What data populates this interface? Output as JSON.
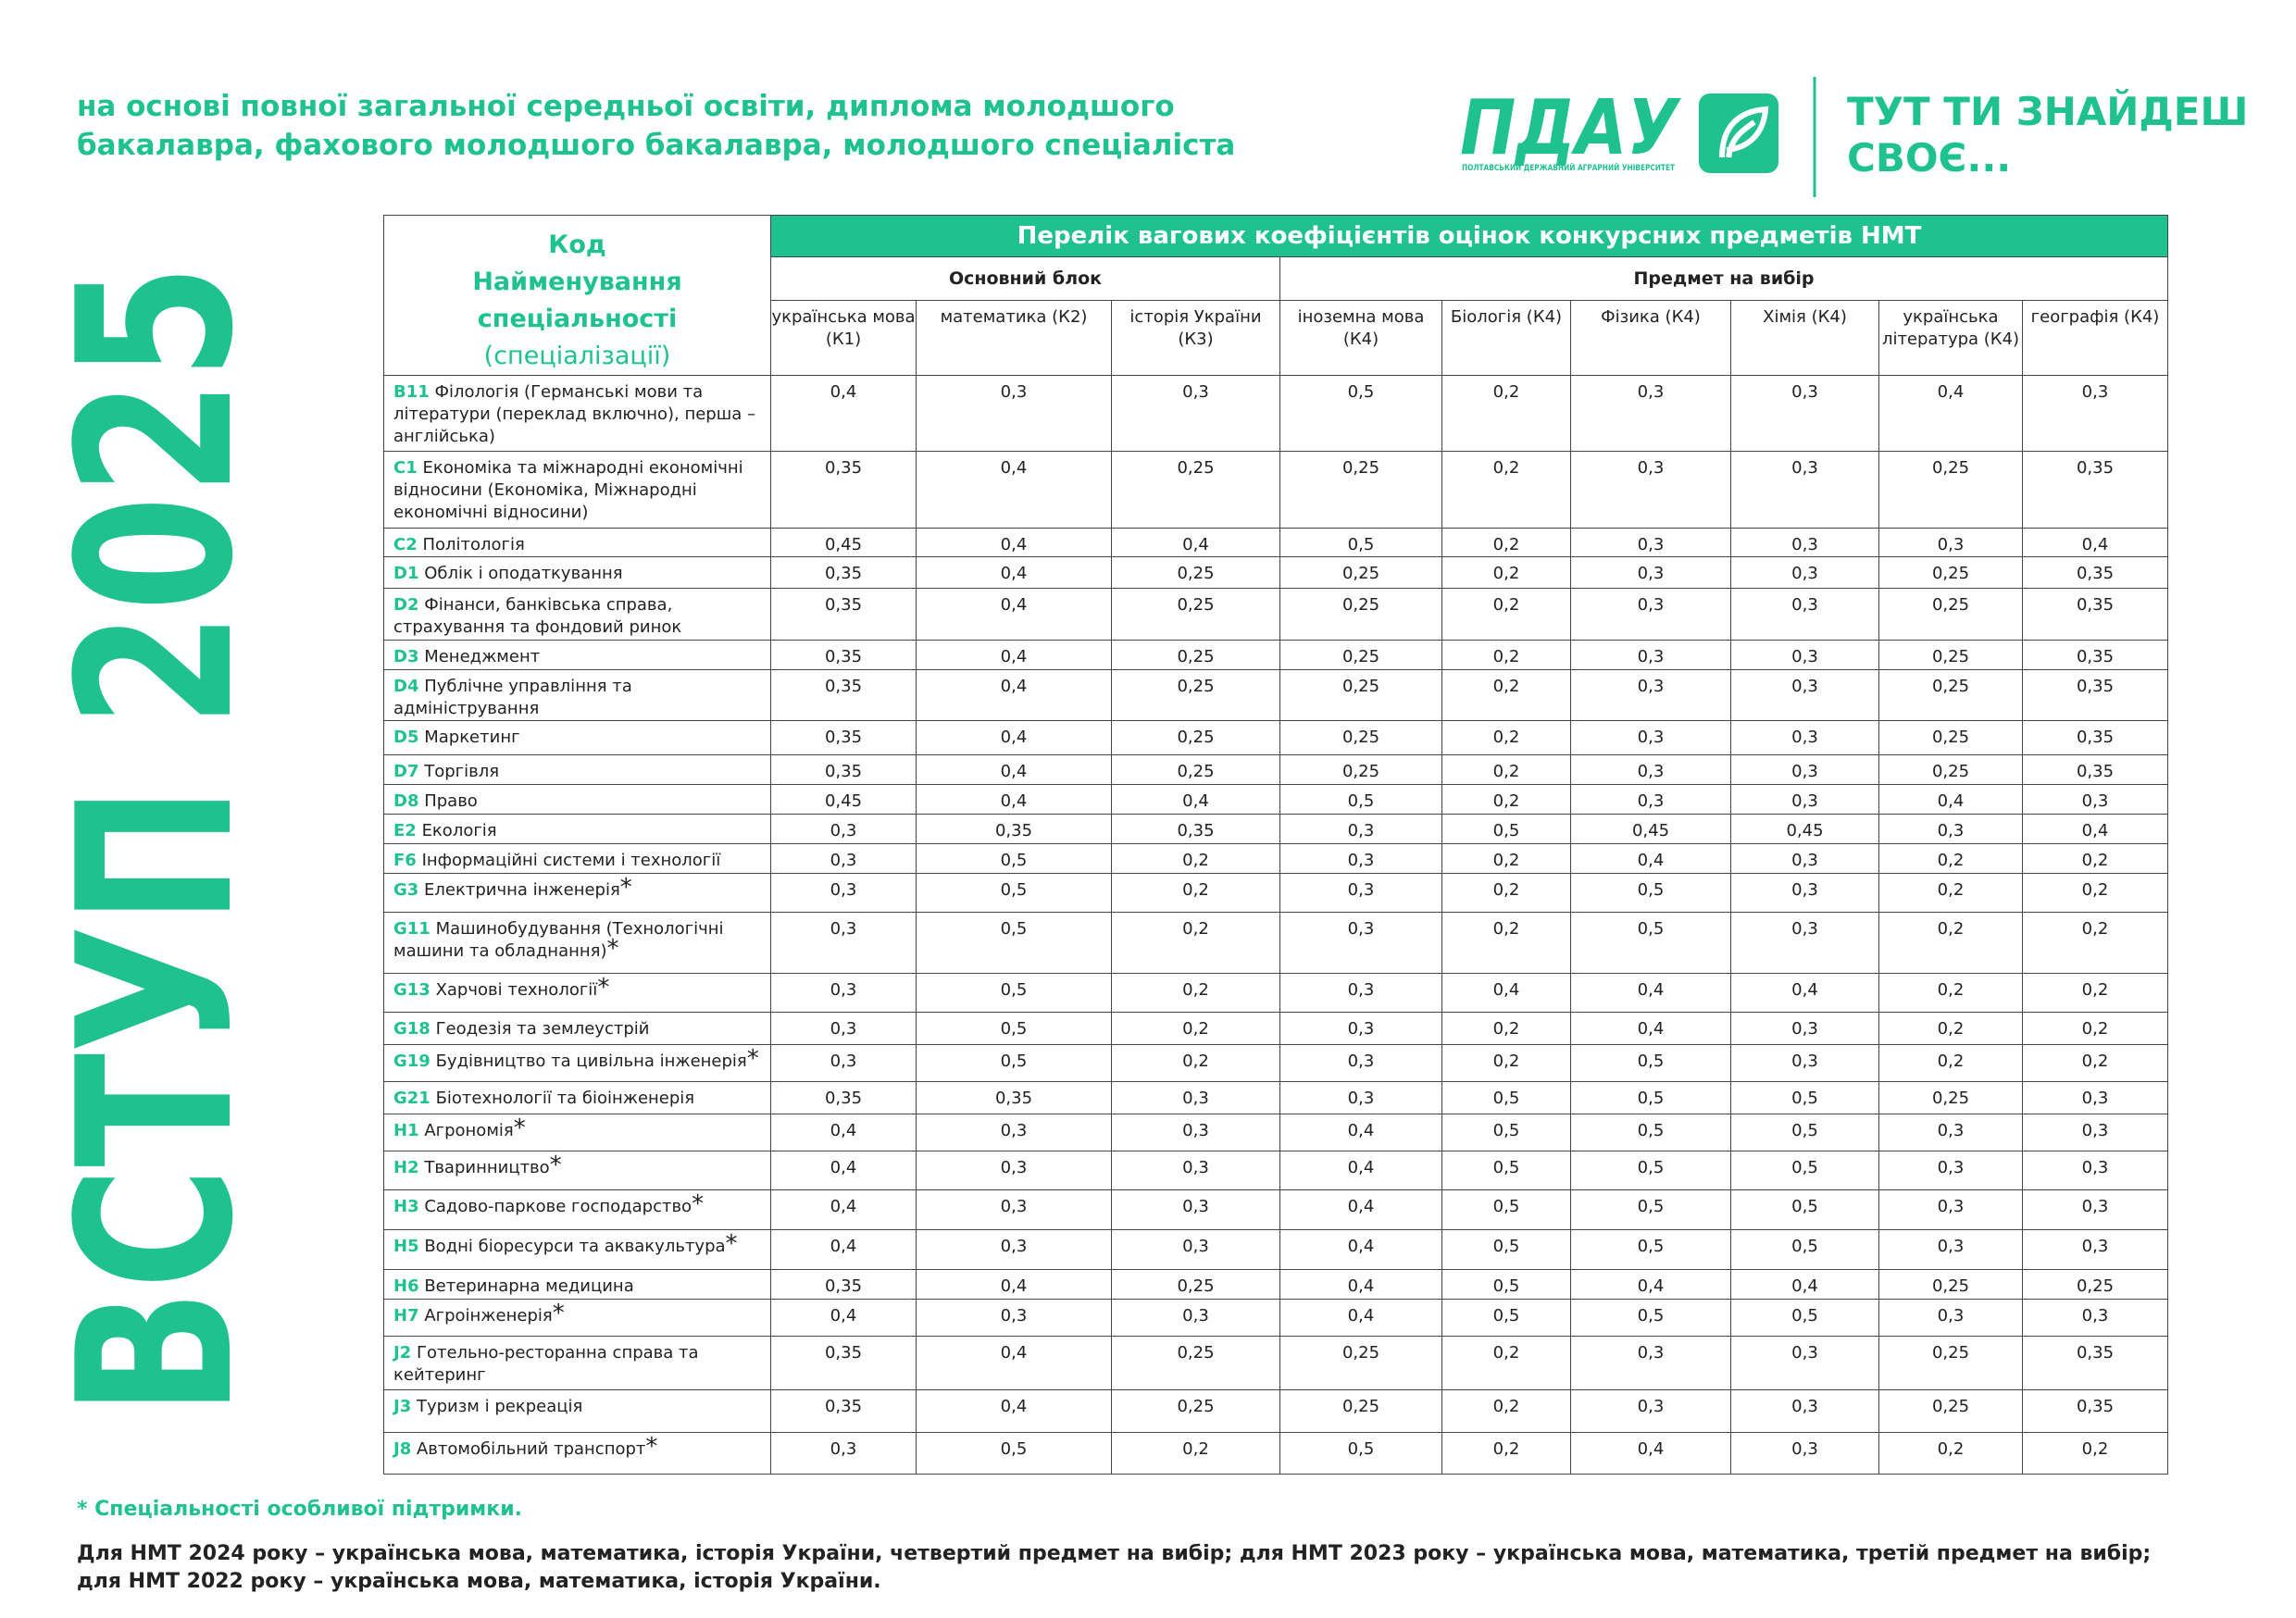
{
  "header": {
    "subtitle": [
      "на основі повної загальної середньої освіти, диплома молодшого",
      "бакалавра, фахового молодшого бакалавра, молодшого спеціаліста"
    ],
    "side_title": "ВСТУП 2025"
  },
  "logo": {
    "name": "ПДАУ",
    "full_name": "ПОЛТАВСЬКИЙ ДЕРЖАВНИЙ АГРАРНИЙ УНІВЕРСИТЕТ",
    "slogan": [
      "ТУТ ТИ ЗНАЙДЕШ",
      "СВОЄ..."
    ]
  },
  "table": {
    "corner": [
      "Код",
      "Найменування спеціальності",
      "(спеціалізації)"
    ],
    "title": "Перелік вагових коефіцієнтів оцінок конкурсних предметів НМТ",
    "groups": [
      "Основний блок",
      "Предмет на вибір"
    ],
    "columns": [
      "українська мова (К1)",
      "математика (К2)",
      "історія України (К3)",
      "іноземна мова (К4)",
      "Біологія (К4)",
      "Фізика (К4)",
      "Хімія (К4)",
      "українська література (К4)",
      "географія (К4)"
    ],
    "rows": [
      {
        "code": "B11",
        "name": "Філологія (Германські мови та літератури (переклад включно), перша – англійська)",
        "values": [
          "0,4",
          "0,3",
          "0,3",
          "0,5",
          "0,2",
          "0,3",
          "0,3",
          "0,4",
          "0,3"
        ]
      },
      {
        "code": "C1",
        "name": "Економіка та міжнародні економічні відносини (Економіка, Міжнародні економічні відносини)",
        "values": [
          "0,35",
          "0,4",
          "0,25",
          "0,25",
          "0,2",
          "0,3",
          "0,3",
          "0,25",
          "0,35"
        ]
      },
      {
        "code": "C2",
        "name": "Політологія",
        "values": [
          "0,45",
          "0,4",
          "0,4",
          "0,5",
          "0,2",
          "0,3",
          "0,3",
          "0,3",
          "0,4"
        ]
      },
      {
        "code": "D1",
        "name": "Облік і оподаткування",
        "values": [
          "0,35",
          "0,4",
          "0,25",
          "0,25",
          "0,2",
          "0,3",
          "0,3",
          "0,25",
          "0,35"
        ]
      },
      {
        "code": "D2",
        "name": "Фінанси, банківська справа, страхування та фондовий ринок",
        "values": [
          "0,35",
          "0,4",
          "0,25",
          "0,25",
          "0,2",
          "0,3",
          "0,3",
          "0,25",
          "0,35"
        ]
      },
      {
        "code": "D3",
        "name": "Менеджмент",
        "values": [
          "0,35",
          "0,4",
          "0,25",
          "0,25",
          "0,2",
          "0,3",
          "0,3",
          "0,25",
          "0,35"
        ]
      },
      {
        "code": "D4",
        "name": "Публічне управління та адміністрування",
        "values": [
          "0,35",
          "0,4",
          "0,25",
          "0,25",
          "0,2",
          "0,3",
          "0,3",
          "0,25",
          "0,35"
        ]
      },
      {
        "code": "D5",
        "name": "Маркетинг",
        "values": [
          "0,35",
          "0,4",
          "0,25",
          "0,25",
          "0,2",
          "0,3",
          "0,3",
          "0,25",
          "0,35"
        ]
      },
      {
        "code": "D7",
        "name": "Торгівля",
        "values": [
          "0,35",
          "0,4",
          "0,25",
          "0,25",
          "0,2",
          "0,3",
          "0,3",
          "0,25",
          "0,35"
        ]
      },
      {
        "code": "D8",
        "name": "Право",
        "values": [
          "0,45",
          "0,4",
          "0,4",
          "0,5",
          "0,2",
          "0,3",
          "0,3",
          "0,4",
          "0,3"
        ]
      },
      {
        "code": "E2",
        "name": "Екологія",
        "values": [
          "0,3",
          "0,35",
          "0,35",
          "0,3",
          "0,5",
          "0,45",
          "0,45",
          "0,3",
          "0,4"
        ]
      },
      {
        "code": "F6",
        "name": "Інформаційні системи і технології",
        "values": [
          "0,3",
          "0,5",
          "0,2",
          "0,3",
          "0,2",
          "0,4",
          "0,3",
          "0,2",
          "0,2"
        ]
      },
      {
        "code": "G3",
        "name": "Електрична інженерія",
        "star": "*",
        "values": [
          "0,3",
          "0,5",
          "0,2",
          "0,3",
          "0,2",
          "0,5",
          "0,3",
          "0,2",
          "0,2"
        ]
      },
      {
        "code": "G11",
        "name": "Машинобудування (Технологічні машини та обладнання)",
        "star": "*",
        "values": [
          "0,3",
          "0,5",
          "0,2",
          "0,3",
          "0,2",
          "0,5",
          "0,3",
          "0,2",
          "0,2"
        ]
      },
      {
        "code": "G13",
        "name": "Харчові технології",
        "star": "*",
        "values": [
          "0,3",
          "0,5",
          "0,2",
          "0,3",
          "0,4",
          "0,4",
          "0,4",
          "0,2",
          "0,2"
        ]
      },
      {
        "code": "G18",
        "name": "Геодезія та землеустрій",
        "values": [
          "0,3",
          "0,5",
          "0,2",
          "0,3",
          "0,2",
          "0,4",
          "0,3",
          "0,2",
          "0,2"
        ]
      },
      {
        "code": "G19",
        "name": "Будівництво та цивільна інженерія",
        "star": "*",
        "values": [
          "0,3",
          "0,5",
          "0,2",
          "0,3",
          "0,2",
          "0,5",
          "0,3",
          "0,2",
          "0,2"
        ]
      },
      {
        "code": "G21",
        "name": "Біотехнології та біоінженерія",
        "values": [
          "0,35",
          "0,35",
          "0,3",
          "0,3",
          "0,5",
          "0,5",
          "0,5",
          "0,25",
          "0,3"
        ]
      },
      {
        "code": "H1",
        "name": "Агрономія",
        "star": "*",
        "values": [
          "0,4",
          "0,3",
          "0,3",
          "0,4",
          "0,5",
          "0,5",
          "0,5",
          "0,3",
          "0,3"
        ]
      },
      {
        "code": "H2",
        "name": "Тваринництво",
        "star": "*",
        "values": [
          "0,4",
          "0,3",
          "0,3",
          "0,4",
          "0,5",
          "0,5",
          "0,5",
          "0,3",
          "0,3"
        ]
      },
      {
        "code": "H3",
        "name": "Садово-паркове господарство",
        "star": "*",
        "values": [
          "0,4",
          "0,3",
          "0,3",
          "0,4",
          "0,5",
          "0,5",
          "0,5",
          "0,3",
          "0,3"
        ]
      },
      {
        "code": "H5",
        "name": "Водні біоресурси та аквакультура",
        "star": "*",
        "values": [
          "0,4",
          "0,3",
          "0,3",
          "0,4",
          "0,5",
          "0,5",
          "0,5",
          "0,3",
          "0,3"
        ]
      },
      {
        "code": "H6",
        "name": "Ветеринарна медицина",
        "values": [
          "0,35",
          "0,4",
          "0,25",
          "0,4",
          "0,5",
          "0,4",
          "0,4",
          "0,25",
          "0,25"
        ]
      },
      {
        "code": "H7",
        "name": "Агроінженерія",
        "star": "*",
        "values": [
          "0,4",
          "0,3",
          "0,3",
          "0,4",
          "0,5",
          "0,5",
          "0,5",
          "0,3",
          "0,3"
        ]
      },
      {
        "code": "J2",
        "name": "Готельно-ресторанна справа та кейтеринг",
        "values": [
          "0,35",
          "0,4",
          "0,25",
          "0,25",
          "0,2",
          "0,3",
          "0,3",
          "0,25",
          "0,35"
        ]
      },
      {
        "code": "J3",
        "name": "Туризм і рекреація",
        "values": [
          "0,35",
          "0,4",
          "0,25",
          "0,25",
          "0,2",
          "0,3",
          "0,3",
          "0,25",
          "0,35"
        ]
      },
      {
        "code": "J8",
        "name": "Автомобільний транспорт",
        "star": "*",
        "values": [
          "0,3",
          "0,5",
          "0,2",
          "0,5",
          "0,2",
          "0,4",
          "0,3",
          "0,2",
          "0,2"
        ]
      }
    ]
  },
  "footnote": "* Спеціальності особливої підтримки.",
  "note": "Для НМТ 2024 року – українська мова, математика, історія України, четвертий предмет на вибір; для НМТ 2023 року – українська мова, математика, третій предмет на вибір; для НМТ 2022 року – українська мова, математика, історія України."
}
